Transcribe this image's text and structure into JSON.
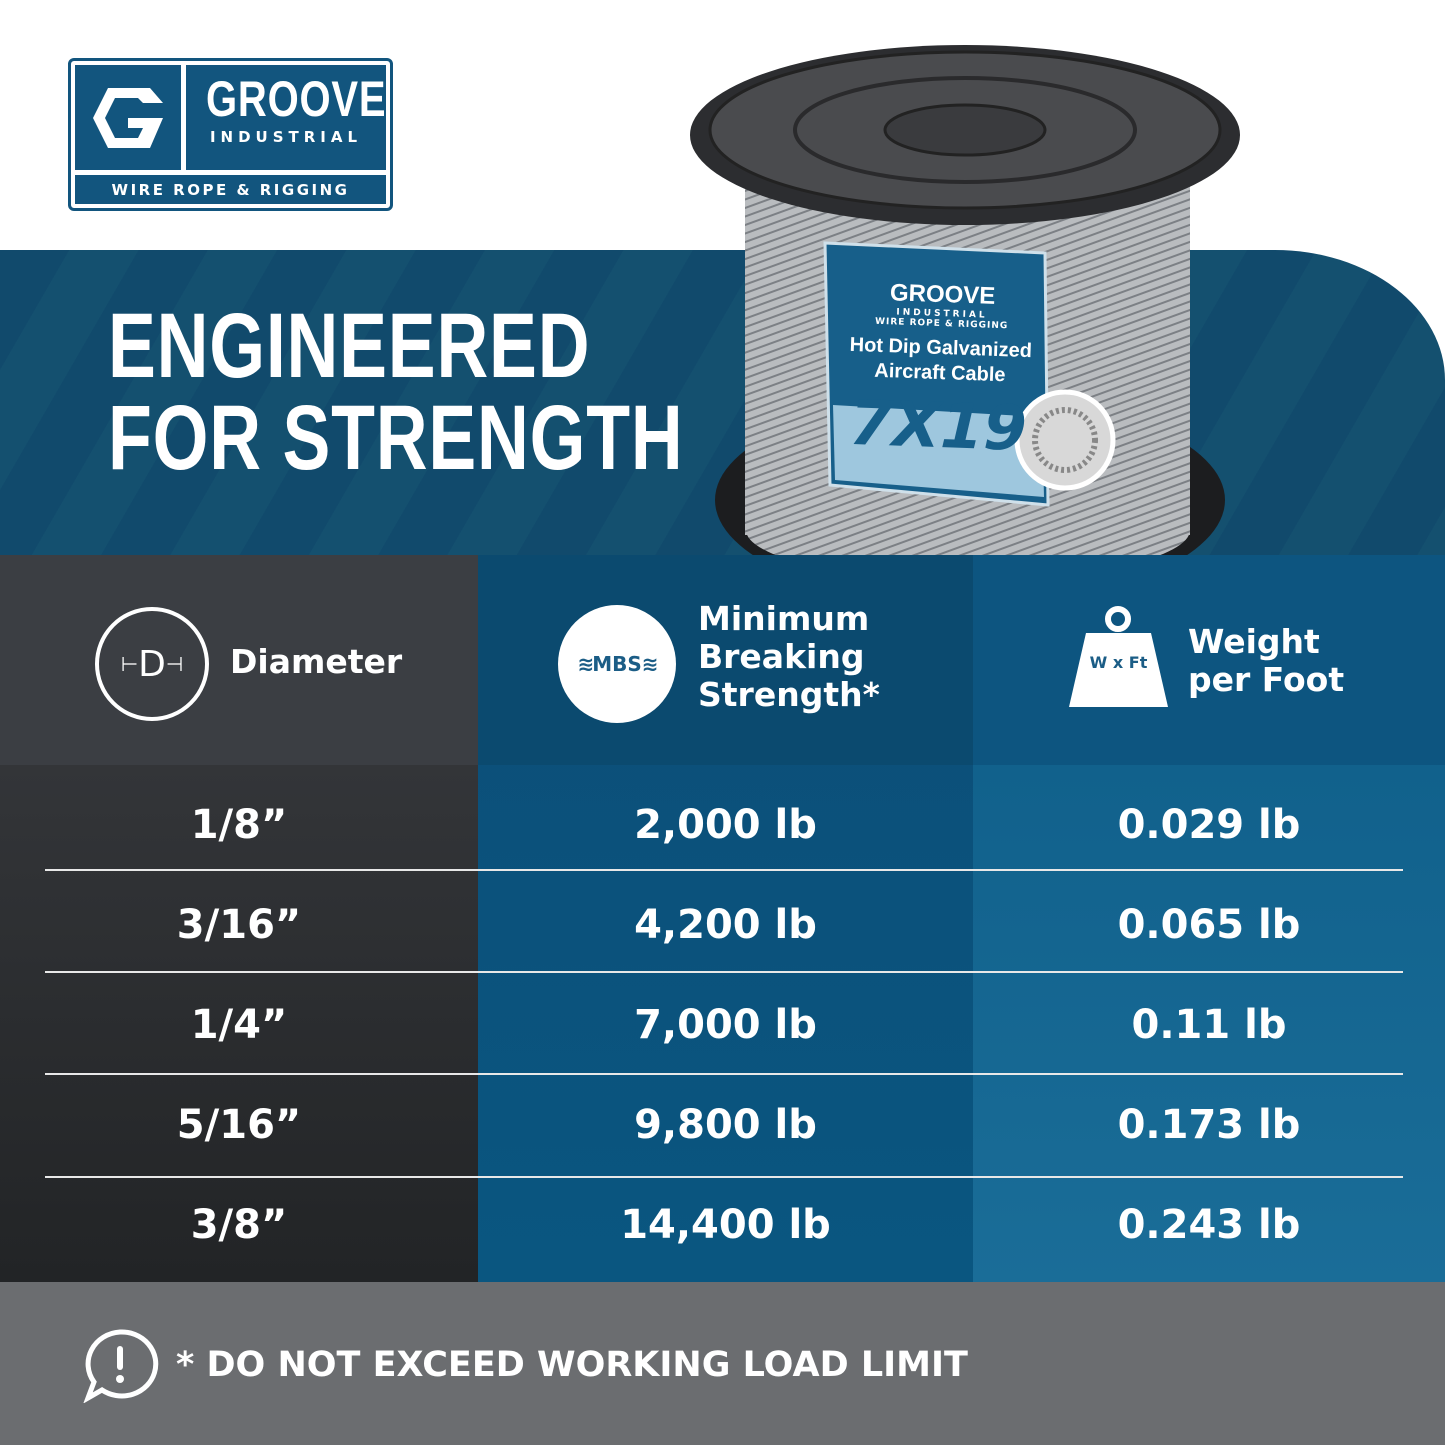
{
  "logo": {
    "brand": "GROOVE",
    "sub": "INDUSTRIAL",
    "tagline": "WIRE ROPE & RIGGING"
  },
  "headline": {
    "line1": "ENGINEERED",
    "line2": "FOR STRENGTH"
  },
  "product_label": {
    "brand": "GROOVE",
    "sub": "INDUSTRIAL",
    "tagline": "WIRE ROPE & RIGGING",
    "title1": "Hot Dip Galvanized",
    "title2": "Aircraft Cable",
    "construction": "7X19"
  },
  "table": {
    "headers": [
      {
        "label": "Diameter",
        "icon": "diameter-icon",
        "icon_text": "D"
      },
      {
        "label_lines": [
          "Minimum",
          "Breaking",
          "Strength*"
        ],
        "icon": "mbs-icon",
        "icon_text": "MBS"
      },
      {
        "label_lines": [
          "Weight",
          "per Foot"
        ],
        "icon": "weight-icon",
        "icon_text": "W x Ft"
      }
    ],
    "rows": [
      {
        "diameter": "1/8”",
        "mbs": "2,000 lb",
        "weight": "0.029 lb"
      },
      {
        "diameter": "3/16”",
        "mbs": "4,200 lb",
        "weight": "0.065 lb"
      },
      {
        "diameter": "1/4”",
        "mbs": "7,000 lb",
        "weight": "0.11 lb"
      },
      {
        "diameter": "5/16”",
        "mbs": "9,800 lb",
        "weight": "0.173 lb"
      },
      {
        "diameter": "3/8”",
        "mbs": "14,400 lb",
        "weight": "0.243 lb"
      }
    ]
  },
  "footer": {
    "warning": "* DO NOT EXCEED WORKING LOAD LIMIT",
    "icon": "alert-speech-bubble-icon"
  },
  "colors": {
    "brand": "#12557e",
    "banner": "#114a6c",
    "footer": "#6b6d70"
  }
}
